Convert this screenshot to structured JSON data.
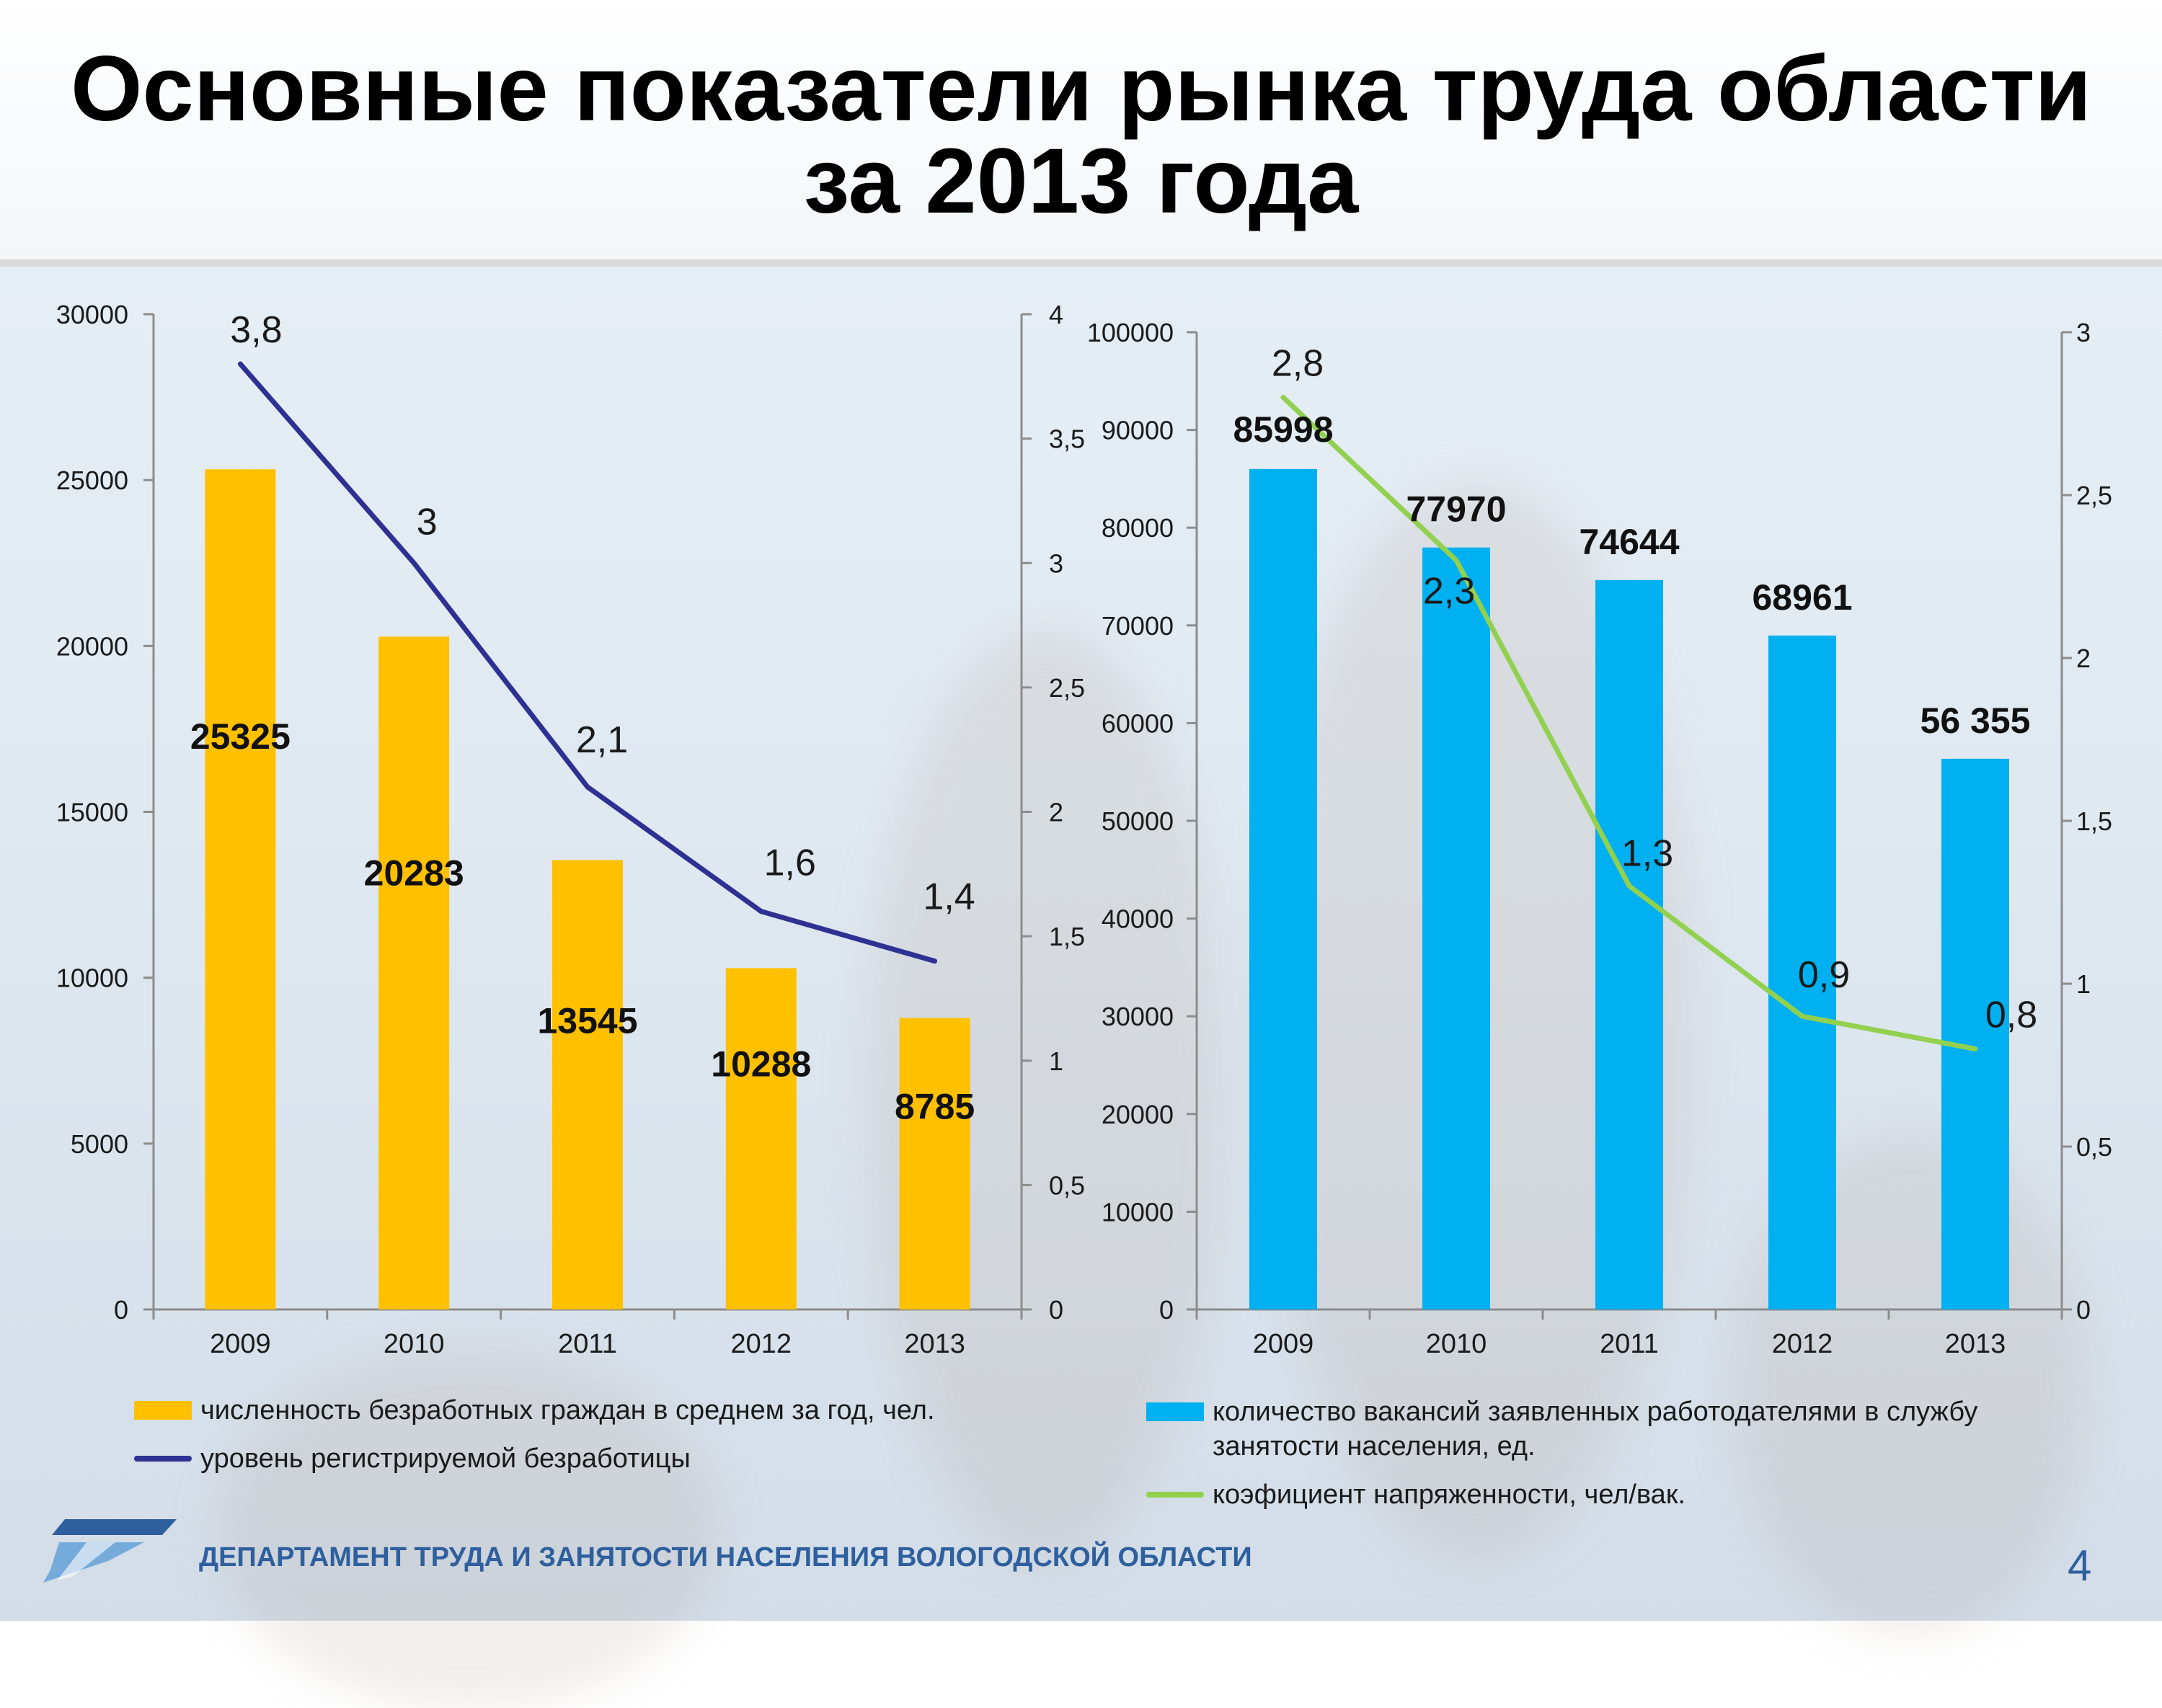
{
  "title": {
    "line1": "Основные показатели рынка труда области",
    "line2": "за 2013 года"
  },
  "colors": {
    "unemployed_bar": "#FFC000",
    "unemployment_line": "#2E3192",
    "vacancies_bar": "#00B0F0",
    "tension_line": "#92D050"
  },
  "chart_data": [
    {
      "type": "bar",
      "categories": [
        "2009",
        "2010",
        "2011",
        "2012",
        "2013"
      ],
      "series": [
        {
          "name": "численность безработных граждан в среднем за год, чел.",
          "axis": "left",
          "values": [
            25325,
            20283,
            13545,
            10288,
            8785
          ],
          "labels": [
            "25325",
            "20283",
            "13545",
            "10288",
            "8785"
          ]
        },
        {
          "name": "уровень регистрируемой безработицы",
          "type": "line",
          "axis": "right",
          "values": [
            3.8,
            3,
            2.1,
            1.6,
            1.4
          ],
          "labels": [
            "3,8",
            "3",
            "2,1",
            "1,6",
            "1,4"
          ]
        }
      ],
      "y_left": {
        "min": 0,
        "max": 30000,
        "ticks": [
          "0",
          "5000",
          "10000",
          "15000",
          "20000",
          "25000",
          "30000"
        ]
      },
      "y_right": {
        "min": 0,
        "max": 4,
        "ticks": [
          "0",
          "0,5",
          "1",
          "1,5",
          "2",
          "2,5",
          "3",
          "3,5",
          "4"
        ]
      },
      "legend_position": "bottom",
      "grid": false
    },
    {
      "type": "bar",
      "categories": [
        "2009",
        "2010",
        "2011",
        "2012",
        "2013"
      ],
      "series": [
        {
          "name": "количество вакансий заявленных работодателями в службу занятости населения, ед.",
          "axis": "left",
          "values": [
            85998,
            77970,
            74644,
            68961,
            56355
          ],
          "labels": [
            "85998",
            "77970",
            "74644",
            "68961",
            "56 355"
          ]
        },
        {
          "name": "коэфициент напряженности, чел/вак.",
          "type": "line",
          "axis": "right",
          "values": [
            2.8,
            2.3,
            1.3,
            0.9,
            0.8
          ],
          "labels": [
            "2,8",
            "2,3",
            "1,3",
            "0,9",
            "0,8"
          ]
        }
      ],
      "y_left": {
        "min": 0,
        "max": 100000,
        "ticks": [
          "0",
          "10000",
          "20000",
          "30000",
          "40000",
          "50000",
          "60000",
          "70000",
          "80000",
          "90000",
          "100000"
        ]
      },
      "y_right": {
        "min": 0,
        "max": 3,
        "ticks": [
          "0",
          "0,5",
          "1",
          "1,5",
          "2",
          "2,5",
          "3"
        ]
      },
      "legend_position": "bottom",
      "grid": false
    }
  ],
  "footer": {
    "department": "ДЕПАРТАМЕНТ ТРУДА И ЗАНЯТОСТИ НАСЕЛЕНИЯ ВОЛОГОДСКОЙ ОБЛАСТИ",
    "page_number": "4"
  }
}
